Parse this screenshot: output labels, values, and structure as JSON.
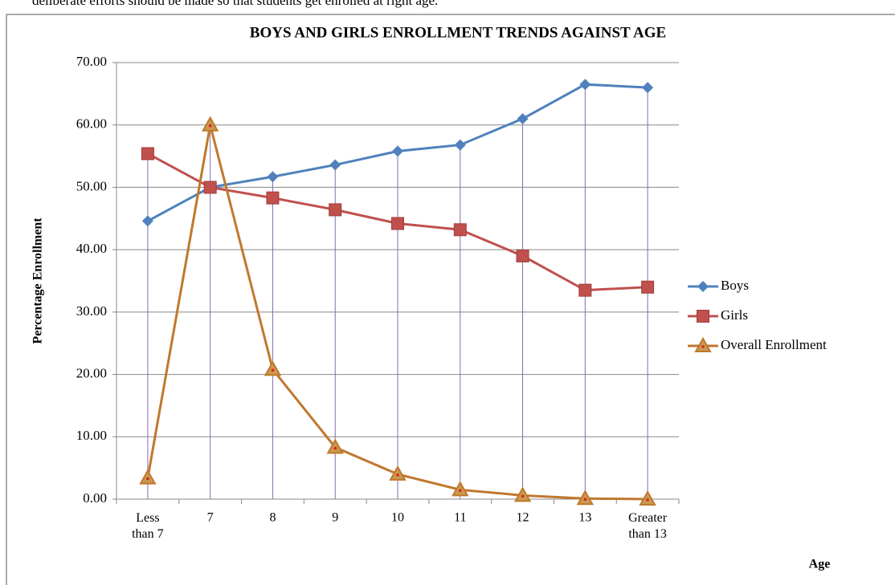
{
  "document": {
    "text_above": "deliberate efforts should be made so that students get enrolled at right age."
  },
  "chart_data": {
    "type": "line",
    "title": "BOYS AND GIRLS ENROLLMENT TRENDS AGAINST AGE",
    "y_label": "Percentage Enrollment",
    "x_label": "Age",
    "categories": [
      "Less than 7",
      "7",
      "8",
      "9",
      "10",
      "11",
      "12",
      "13",
      "Greater than 13"
    ],
    "series": [
      {
        "name": "Boys",
        "color": "#4f81bd",
        "marker": "diamond",
        "values": [
          44.6,
          50.0,
          51.7,
          53.6,
          55.8,
          56.8,
          61.0,
          66.5,
          66.0
        ]
      },
      {
        "name": "Girls",
        "color": "#c0504d",
        "marker": "square",
        "values": [
          55.4,
          50.0,
          48.3,
          46.4,
          44.2,
          43.2,
          39.0,
          33.5,
          34.0
        ]
      },
      {
        "name": "Overall Enrollment",
        "color": "#c0782e",
        "marker": "triangle",
        "values": [
          3.4,
          60.0,
          20.8,
          8.3,
          4.0,
          1.5,
          0.6,
          0.1,
          0.0
        ]
      }
    ],
    "ylim": [
      0,
      70
    ],
    "yticks": [
      {
        "value": 0,
        "label": "0.00"
      },
      {
        "value": 10,
        "label": "10.00"
      },
      {
        "value": 20,
        "label": "20.00"
      },
      {
        "value": 30,
        "label": "30.00"
      },
      {
        "value": 40,
        "label": "40.00"
      },
      {
        "value": 50,
        "label": "50.00"
      },
      {
        "value": 60,
        "label": "60.00"
      },
      {
        "value": 70,
        "label": "70.00"
      }
    ],
    "grid": true,
    "drop_lines": true,
    "legend": "right"
  }
}
